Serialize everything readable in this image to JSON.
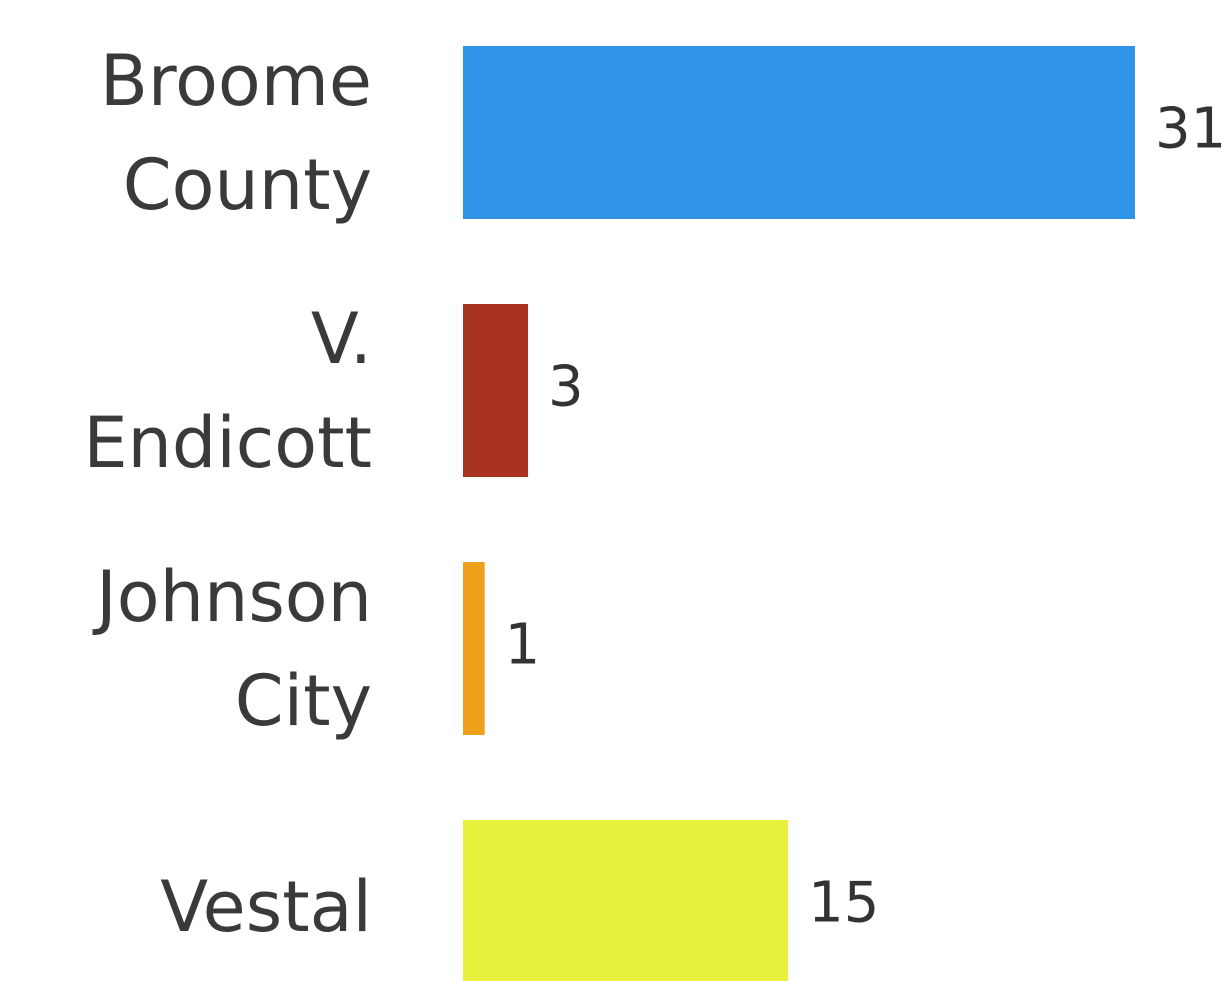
{
  "chart_data": {
    "type": "bar",
    "categories": [
      "Broome County",
      "V. Endicott",
      "Johnson City",
      "Vestal"
    ],
    "series": [
      {
        "values": [
          31,
          3,
          1,
          15
        ],
        "colors": [
          "#2f94e8",
          "#a8341f",
          "#f0a11c",
          "#e8f03e"
        ]
      }
    ]
  }
}
